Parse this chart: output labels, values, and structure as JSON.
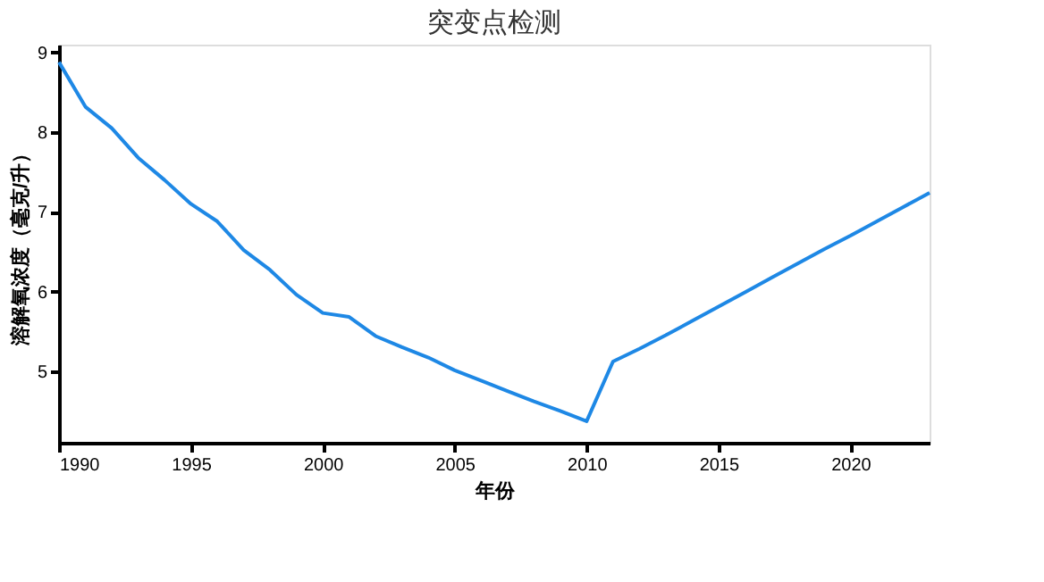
{
  "chart_data": {
    "type": "line",
    "title": "突变点检测",
    "xlabel": "年份",
    "ylabel": "溶解氧浓度（毫克/升）",
    "x": [
      1990,
      1991,
      1992,
      1993,
      1994,
      1995,
      1996,
      1997,
      1998,
      1999,
      2000,
      2001,
      2002,
      2003,
      2004,
      2005,
      2006,
      2007,
      2008,
      2009,
      2010,
      2011,
      2012,
      2013,
      2014,
      2015,
      2016,
      2017,
      2018,
      2019,
      2020,
      2021,
      2022,
      2023
    ],
    "series": [
      {
        "color": "#1e88e5",
        "values": [
          8.88,
          8.32,
          8.05,
          7.68,
          7.4,
          7.1,
          6.88,
          6.52,
          6.27,
          5.96,
          5.73,
          5.68,
          5.44,
          5.3,
          5.17,
          5.01,
          4.88,
          4.75,
          4.62,
          4.5,
          4.37,
          5.12,
          5.28,
          5.45,
          5.63,
          5.81,
          5.99,
          6.17,
          6.35,
          6.53,
          6.7,
          6.88,
          7.06,
          7.24
        ]
      }
    ],
    "xlim": [
      1990,
      2023
    ],
    "xticks": [
      1990,
      1995,
      2000,
      2005,
      2010,
      2015,
      2020
    ],
    "ylim": [
      4.1,
      9.1
    ],
    "yticks": [
      5,
      6,
      7,
      8,
      9
    ],
    "grid": false,
    "legend": false,
    "marker": "none",
    "line_style": "solid"
  }
}
